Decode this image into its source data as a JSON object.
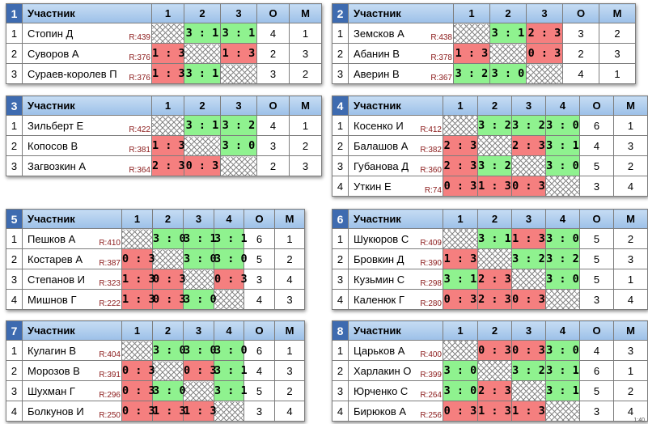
{
  "header_participant": "Участник",
  "header_points": "О",
  "header_place": "М",
  "footer_stamp": "1:40",
  "groups": [
    {
      "number": "2",
      "cols": [
        "1",
        "2",
        "3"
      ],
      "players": [
        {
          "name": "Земсков А",
          "rating": "R:438",
          "results": [
            "self",
            "3 : 1",
            "2 : 3"
          ],
          "points": "3",
          "place": "2"
        },
        {
          "name": "Абанин В",
          "rating": "R:378",
          "results": [
            "1 : 3",
            "self",
            "0 : 3"
          ],
          "points": "2",
          "place": "3"
        },
        {
          "name": "Аверин В",
          "rating": "R:367",
          "results": [
            "3 : 2",
            "3 : 0",
            "self"
          ],
          "points": "4",
          "place": "1"
        }
      ]
    },
    {
      "number": "1",
      "cols": [
        "1",
        "2",
        "3"
      ],
      "players": [
        {
          "name": "Стопин Д",
          "rating": "R:439",
          "results": [
            "self",
            "3 : 1",
            "3 : 1"
          ],
          "points": "4",
          "place": "1"
        },
        {
          "name": "Суворов А",
          "rating": "R:376",
          "results": [
            "1 : 3",
            "self",
            "1 : 3"
          ],
          "points": "2",
          "place": "3"
        },
        {
          "name": "Сураев-королев П",
          "rating": "R:376",
          "results": [
            "1 : 3",
            "3 : 1",
            "self"
          ],
          "points": "3",
          "place": "2"
        }
      ]
    },
    {
      "number": "3",
      "cols": [
        "1",
        "2",
        "3"
      ],
      "players": [
        {
          "name": "Зильберт Е",
          "rating": "R:422",
          "results": [
            "self",
            "3 : 1",
            "3 : 2"
          ],
          "points": "4",
          "place": "1"
        },
        {
          "name": "Копосов В",
          "rating": "R:381",
          "results": [
            "1 : 3",
            "self",
            "3 : 0"
          ],
          "points": "3",
          "place": "2"
        },
        {
          "name": "Загвозкин А",
          "rating": "R:364",
          "results": [
            "2 : 3",
            "0 : 3",
            "self"
          ],
          "points": "2",
          "place": "3"
        }
      ]
    },
    {
      "number": "4",
      "cols": [
        "1",
        "2",
        "3",
        "4"
      ],
      "players": [
        {
          "name": "Косенко И",
          "rating": "R:412",
          "results": [
            "self",
            "3 : 2",
            "3 : 2",
            "3 : 0"
          ],
          "points": "6",
          "place": "1"
        },
        {
          "name": "Балашов А",
          "rating": "R:382",
          "results": [
            "2 : 3",
            "self",
            "2 : 3",
            "3 : 1"
          ],
          "points": "4",
          "place": "3"
        },
        {
          "name": "Губанова Д",
          "rating": "R:360",
          "results": [
            "2 : 3",
            "3 : 2",
            "self",
            "3 : 0"
          ],
          "points": "5",
          "place": "2"
        },
        {
          "name": "Уткин Е",
          "rating": "R:74",
          "results": [
            "0 : 3",
            "1 : 3",
            "0 : 3",
            "self"
          ],
          "points": "3",
          "place": "4"
        }
      ]
    },
    {
      "number": "5",
      "cols": [
        "1",
        "2",
        "3",
        "4"
      ],
      "players": [
        {
          "name": "Пешков А",
          "rating": "R:410",
          "results": [
            "self",
            "3 : 0",
            "3 : 1",
            "3 : 1"
          ],
          "points": "6",
          "place": "1"
        },
        {
          "name": "Костарев А",
          "rating": "R:387",
          "results": [
            "0 : 3",
            "self",
            "3 : 0",
            "3 : 0"
          ],
          "points": "5",
          "place": "2"
        },
        {
          "name": "Степанов И",
          "rating": "R:323",
          "results": [
            "1 : 3",
            "0 : 3",
            "self",
            "0 : 3"
          ],
          "points": "3",
          "place": "4"
        },
        {
          "name": "Мишнов Г",
          "rating": "R:222",
          "results": [
            "1 : 3",
            "0 : 3",
            "3 : 0",
            "self"
          ],
          "points": "4",
          "place": "3"
        }
      ]
    },
    {
      "number": "6",
      "cols": [
        "1",
        "2",
        "3",
        "4"
      ],
      "players": [
        {
          "name": "Шукюров С",
          "rating": "R:409",
          "results": [
            "self",
            "3 : 1",
            "1 : 3",
            "3 : 0"
          ],
          "points": "5",
          "place": "2"
        },
        {
          "name": "Бровкин Д",
          "rating": "R:390",
          "results": [
            "1 : 3",
            "self",
            "3 : 2",
            "3 : 2"
          ],
          "points": "5",
          "place": "3"
        },
        {
          "name": "Кузьмин С",
          "rating": "R:298",
          "results": [
            "3 : 1",
            "2 : 3",
            "self",
            "3 : 0"
          ],
          "points": "5",
          "place": "1"
        },
        {
          "name": "Каленюк Г",
          "rating": "R:280",
          "results": [
            "0 : 3",
            "2 : 3",
            "0 : 3",
            "self"
          ],
          "points": "3",
          "place": "4"
        }
      ]
    },
    {
      "number": "7",
      "cols": [
        "1",
        "2",
        "3",
        "4"
      ],
      "players": [
        {
          "name": "Кулагин В",
          "rating": "R:404",
          "results": [
            "self",
            "3 : 0",
            "3 : 0",
            "3 : 0"
          ],
          "points": "6",
          "place": "1"
        },
        {
          "name": "Морозов В",
          "rating": "R:391",
          "results": [
            "0 : 3",
            "self",
            "0 : 3",
            "3 : 1"
          ],
          "points": "4",
          "place": "3"
        },
        {
          "name": "Шухман Г",
          "rating": "R:296",
          "results": [
            "0 : 3",
            "3 : 0",
            "self",
            "3 : 1"
          ],
          "points": "5",
          "place": "2"
        },
        {
          "name": "Болкунов И",
          "rating": "R:250",
          "results": [
            "0 : 3",
            "1 : 3",
            "1 : 3",
            "self"
          ],
          "points": "3",
          "place": "4"
        }
      ]
    },
    {
      "number": "8",
      "cols": [
        "1",
        "2",
        "3",
        "4"
      ],
      "players": [
        {
          "name": "Царьков А",
          "rating": "R:400",
          "results": [
            "self",
            "0 : 3",
            "0 : 3",
            "3 : 0"
          ],
          "points": "4",
          "place": "3"
        },
        {
          "name": "Харлакин О",
          "rating": "R:399",
          "results": [
            "3 : 0",
            "self",
            "3 : 2",
            "3 : 1"
          ],
          "points": "6",
          "place": "1"
        },
        {
          "name": "Юрченко С",
          "rating": "R:264",
          "results": [
            "3 : 0",
            "2 : 3",
            "self",
            "3 : 1"
          ],
          "points": "5",
          "place": "2"
        },
        {
          "name": "Бирюков А",
          "rating": "R:256",
          "results": [
            "0 : 3",
            "1 : 3",
            "1 : 3",
            "self"
          ],
          "points": "3",
          "place": "4"
        }
      ]
    }
  ]
}
